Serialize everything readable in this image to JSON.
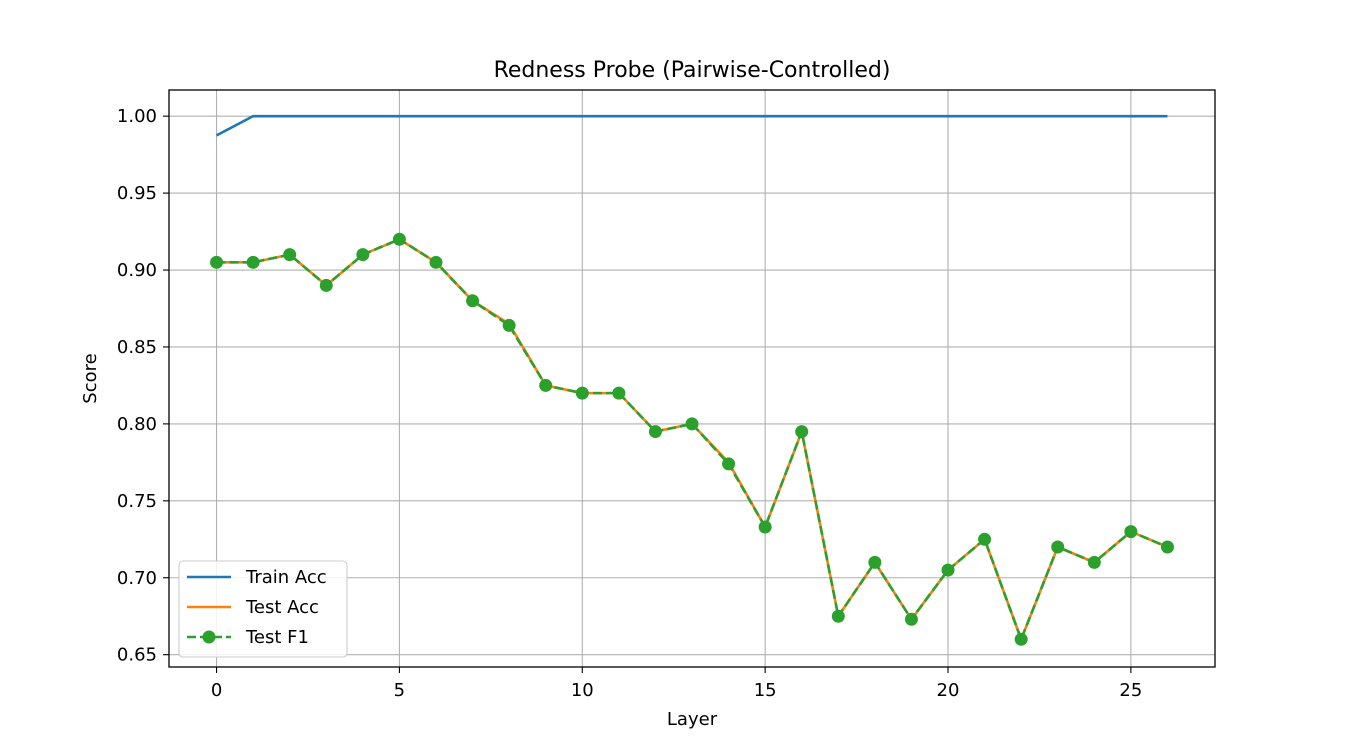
{
  "chart_data": {
    "type": "line",
    "title": "Redness Probe (Pairwise-Controlled)",
    "xlabel": "Layer",
    "ylabel": "Score",
    "xlim": [
      -1.3,
      27.3
    ],
    "ylim": [
      0.642,
      1.017
    ],
    "xticks": [
      0,
      5,
      10,
      15,
      20,
      25
    ],
    "yticks": [
      0.65,
      0.7,
      0.75,
      0.8,
      0.85,
      0.9,
      0.95,
      1.0
    ],
    "grid": true,
    "legend_position": "lower-left",
    "x": [
      0,
      1,
      2,
      3,
      4,
      5,
      6,
      7,
      8,
      9,
      10,
      11,
      12,
      13,
      14,
      15,
      16,
      17,
      18,
      19,
      20,
      21,
      22,
      23,
      24,
      25,
      26
    ],
    "series": [
      {
        "name": "Train Acc",
        "color": "#1f77b4",
        "style": "solid",
        "marker": "none",
        "values": [
          0.9875,
          1.0,
          1.0,
          1.0,
          1.0,
          1.0,
          1.0,
          1.0,
          1.0,
          1.0,
          1.0,
          1.0,
          1.0,
          1.0,
          1.0,
          1.0,
          1.0,
          1.0,
          1.0,
          1.0,
          1.0,
          1.0,
          1.0,
          1.0,
          1.0,
          1.0,
          1.0
        ]
      },
      {
        "name": "Test Acc",
        "color": "#ff7f0e",
        "style": "solid",
        "marker": "none",
        "values": [
          0.905,
          0.905,
          0.91,
          0.89,
          0.91,
          0.92,
          0.905,
          0.88,
          0.865,
          0.825,
          0.82,
          0.82,
          0.795,
          0.8,
          0.775,
          0.733,
          0.795,
          0.675,
          0.71,
          0.673,
          0.705,
          0.725,
          0.66,
          0.72,
          0.71,
          0.73,
          0.72
        ]
      },
      {
        "name": "Test F1",
        "color": "#2ca02c",
        "style": "dashed",
        "marker": "circle",
        "values": [
          0.905,
          0.905,
          0.91,
          0.89,
          0.91,
          0.92,
          0.905,
          0.88,
          0.864,
          0.825,
          0.82,
          0.82,
          0.795,
          0.8,
          0.774,
          0.733,
          0.795,
          0.675,
          0.71,
          0.673,
          0.705,
          0.725,
          0.66,
          0.72,
          0.71,
          0.73,
          0.72
        ]
      }
    ]
  }
}
